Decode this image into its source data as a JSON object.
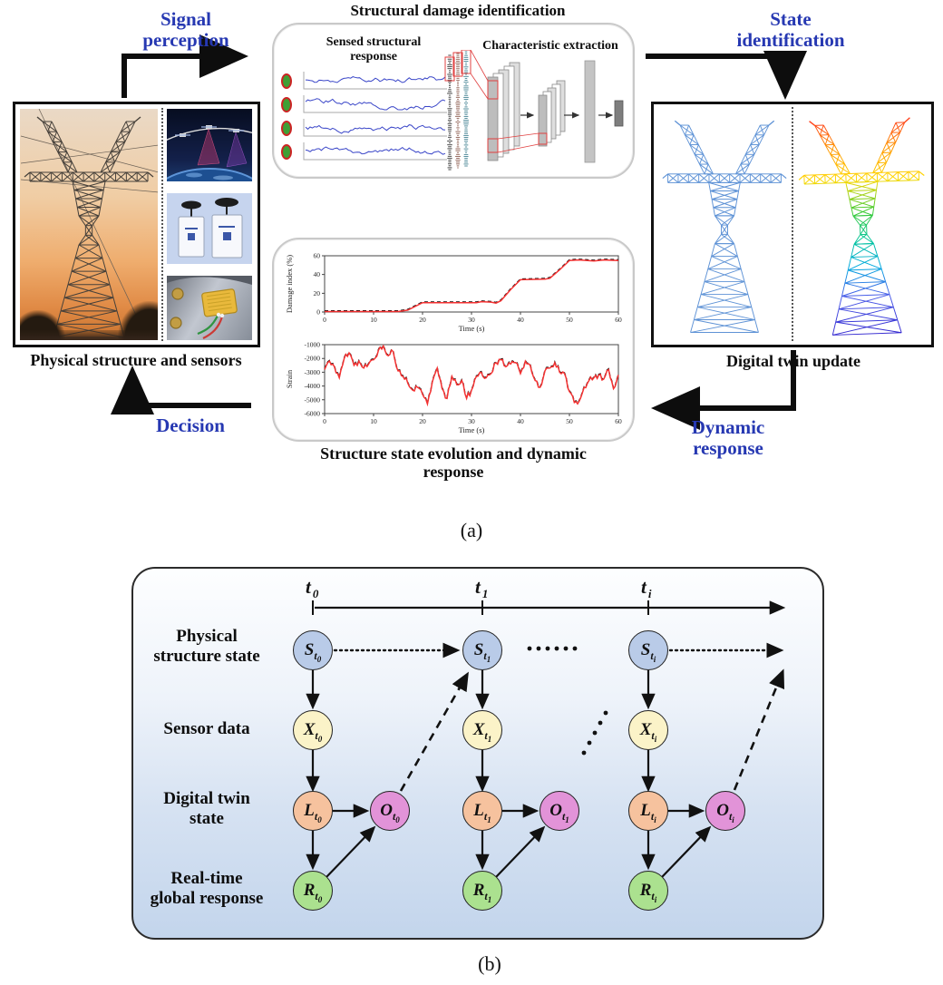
{
  "panel_a": {
    "labels": {
      "signal_perception": "Signal perception",
      "state_identification": "State identification",
      "decision": "Decision",
      "dynamic_response": "Dynamic response"
    },
    "damage_box": {
      "title": "Structural damage identification",
      "sensed_heading": "Sensed structural response",
      "extraction_heading": "Characteristic extraction"
    },
    "physical_caption": "Physical structure and sensors",
    "twin_caption": "Digital twin update",
    "evolution_caption": "Structure state evolution and dynamic response",
    "fig_label": "(a)"
  },
  "chart_data": [
    {
      "type": "line",
      "title": "",
      "xlabel": "Time (s)",
      "ylabel": "Damage index (%)",
      "xlim": [
        0,
        60
      ],
      "ylim": [
        0,
        60
      ],
      "xticks": [
        0,
        10,
        20,
        30,
        40,
        50,
        60
      ],
      "yticks": [
        0,
        20,
        40,
        60
      ],
      "grid": false,
      "series": [
        {
          "name": "damage index (identified, red solid / reference, black dashed)",
          "color": "#f53131",
          "x": [
            0,
            15,
            17,
            20,
            31,
            32,
            34,
            35,
            36,
            38,
            40,
            45,
            46,
            48,
            50,
            52,
            55,
            57,
            60
          ],
          "y": [
            0.5,
            0.5,
            2,
            10,
            10,
            11,
            10.5,
            9.5,
            12,
            24,
            34.5,
            35,
            36,
            45,
            55,
            55.5,
            54.5,
            55.5,
            55
          ]
        }
      ]
    },
    {
      "type": "line",
      "title": "",
      "xlabel": "Time (s)",
      "ylabel": "Strain",
      "xlim": [
        0,
        60
      ],
      "ylim": [
        -6000,
        -1000
      ],
      "xticks": [
        0,
        10,
        20,
        30,
        40,
        50,
        60
      ],
      "yticks": [
        -1000,
        -2000,
        -3000,
        -4000,
        -5000,
        -6000
      ],
      "grid": false,
      "series": [
        {
          "name": "strain response (red solid / black dashed overlay)",
          "color": "#f53131",
          "x_start": 0,
          "x_step": 1,
          "y": [
            -2800,
            -2200,
            -2600,
            -3400,
            -2000,
            -1600,
            -2500,
            -2200,
            -2700,
            -2400,
            -2100,
            -1400,
            -1100,
            -1800,
            -1500,
            -2900,
            -3300,
            -3800,
            -4300,
            -4100,
            -4600,
            -5300,
            -3700,
            -2700,
            -4200,
            -4900,
            -3300,
            -3900,
            -3600,
            -4900,
            -4300,
            -3300,
            -3000,
            -3400,
            -3100,
            -2300,
            -2100,
            -2600,
            -2400,
            -2300,
            -3100,
            -2200,
            -2500,
            -3600,
            -4100,
            -2900,
            -2700,
            -2300,
            -3000,
            -3100,
            -4400,
            -5200,
            -5100,
            -4100,
            -3600,
            -3400,
            -3200,
            -3500,
            -2800,
            -4200,
            -3200
          ]
        }
      ]
    }
  ],
  "panel_b": {
    "fig_label": "(b)",
    "timeline_labels": [
      {
        "base": "t",
        "sub": "0"
      },
      {
        "base": "t",
        "sub": "1"
      },
      {
        "base": "t",
        "sub": "i"
      }
    ],
    "subscripts": [
      "0",
      "1",
      "i"
    ],
    "rows": [
      {
        "label": "Physical\nstructure state",
        "letter": "S",
        "color": "#b9cbe8"
      },
      {
        "label": "Sensor data",
        "letter": "X",
        "color": "#fbf3c8"
      },
      {
        "label": "Digital twin\nstate",
        "letter": "L",
        "color": "#f6c29e"
      },
      {
        "label": "Real-time\nglobal response",
        "letter": "R",
        "color": "#abe18f"
      }
    ],
    "o_node": {
      "letter": "O",
      "color": "#e293d8"
    }
  },
  "colors": {
    "accent_blue_text": "#2638b2",
    "arrow_black": "#0d0d0d",
    "plot_red": "#f53131",
    "twin_blue_tower": "#5f93d6"
  }
}
